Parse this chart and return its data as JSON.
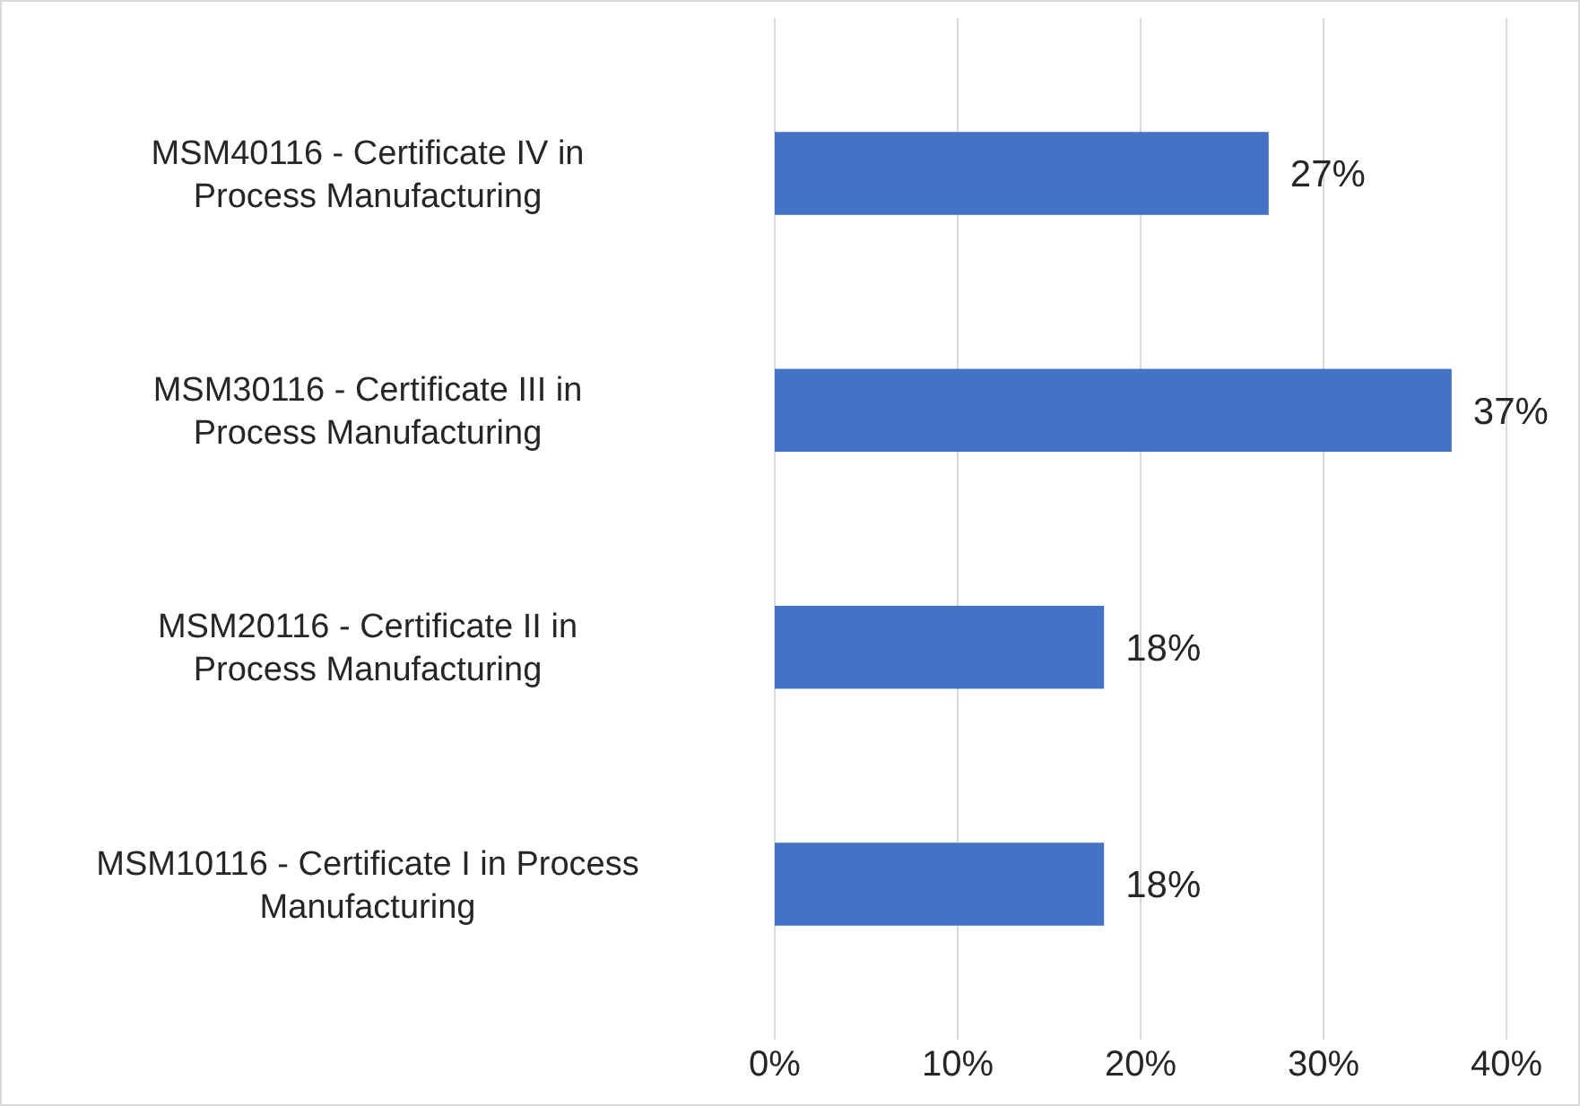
{
  "chart_data": {
    "type": "bar",
    "orientation": "horizontal",
    "categories": [
      "MSM40116 - Certificate IV in Process Manufacturing",
      "MSM30116 - Certificate III in Process Manufacturing",
      "MSM20116 - Certificate II in Process Manufacturing",
      "MSM10116 - Certificate I in Process Manufacturing"
    ],
    "values": [
      27,
      37,
      18,
      18
    ],
    "value_labels": [
      "27%",
      "37%",
      "18%",
      "18%"
    ],
    "color": "#4472c4",
    "xlim": [
      0,
      40
    ],
    "xticks": [
      {
        "value": 0,
        "label": "0%"
      },
      {
        "value": 10,
        "label": "10%"
      },
      {
        "value": 20,
        "label": "20%"
      },
      {
        "value": 30,
        "label": "30%"
      },
      {
        "value": 40,
        "label": "40%"
      }
    ],
    "grid": "x"
  }
}
